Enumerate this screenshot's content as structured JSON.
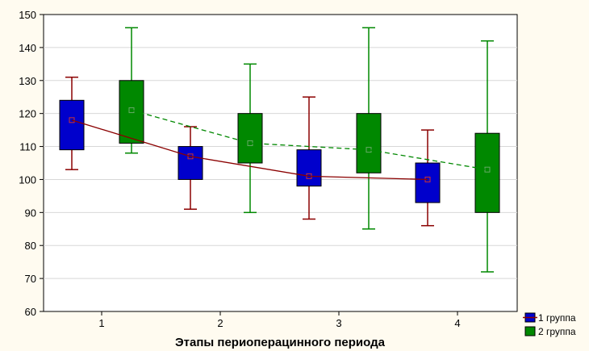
{
  "chart_data": {
    "type": "box",
    "title": "",
    "xlabel": "Этапы периоперацинного периода",
    "ylabel": "",
    "categories": [
      "1",
      "2",
      "3",
      "4"
    ],
    "ylim": [
      60,
      150
    ],
    "yticks": [
      60,
      70,
      80,
      90,
      100,
      110,
      120,
      130,
      140,
      150
    ],
    "grid": true,
    "legend_position": "bottom-right",
    "series": [
      {
        "name": "1 группа",
        "color": "#0000cc",
        "whisker_color": "#8b0000",
        "mean_line": "solid",
        "boxes": [
          {
            "category": "1",
            "min": 103,
            "q1": 109,
            "mean": 118,
            "q3": 124,
            "max": 131
          },
          {
            "category": "2",
            "min": 91,
            "q1": 100,
            "mean": 107,
            "q3": 110,
            "max": 116
          },
          {
            "category": "3",
            "min": 88,
            "q1": 98,
            "mean": 101,
            "q3": 109,
            "max": 125
          },
          {
            "category": "4",
            "min": 86,
            "q1": 93,
            "mean": 100,
            "q3": 105,
            "max": 115
          }
        ]
      },
      {
        "name": "2 группа",
        "color": "#008800",
        "whisker_color": "#008800",
        "mean_line": "dashed",
        "boxes": [
          {
            "category": "1",
            "min": 108,
            "q1": 111,
            "mean": 121,
            "q3": 130,
            "max": 146
          },
          {
            "category": "2",
            "min": 90,
            "q1": 105,
            "mean": 111,
            "q3": 120,
            "max": 135
          },
          {
            "category": "3",
            "min": 85,
            "q1": 102,
            "mean": 109,
            "q3": 120,
            "max": 146
          },
          {
            "category": "4",
            "min": 72,
            "q1": 90,
            "mean": 103,
            "q3": 114,
            "max": 142
          }
        ]
      }
    ]
  }
}
